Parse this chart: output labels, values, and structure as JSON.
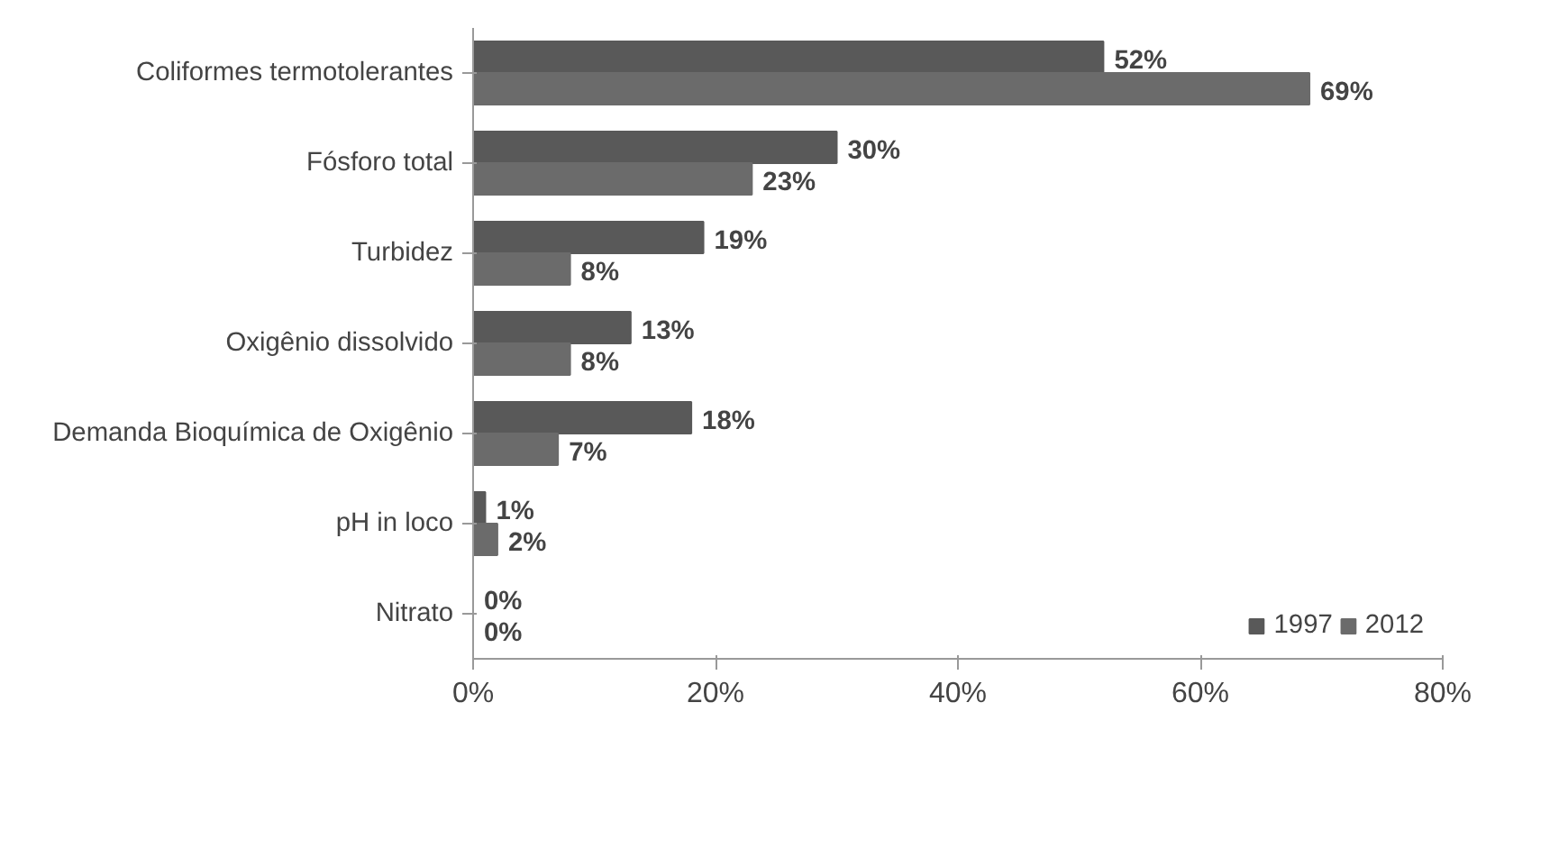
{
  "chart_data": {
    "type": "bar",
    "orientation": "horizontal",
    "categories": [
      "Coliformes termotolerantes",
      "Fósforo total",
      "Turbidez",
      "Oxigênio dissolvido",
      "Demanda Bioquímica de Oxigênio",
      "pH in loco",
      "Nitrato"
    ],
    "series": [
      {
        "name": "1997",
        "color": "#595959",
        "values": [
          52,
          30,
          19,
          13,
          18,
          1,
          0
        ],
        "value_labels": [
          "52%",
          "30%",
          "19%",
          "13%",
          "18%",
          "1%",
          "0%"
        ]
      },
      {
        "name": "2012",
        "color": "#6b6b6b",
        "values": [
          69,
          23,
          8,
          8,
          7,
          2,
          0
        ],
        "value_labels": [
          "69%",
          "23%",
          "8%",
          "8%",
          "7%",
          "2%",
          "0%"
        ]
      }
    ],
    "xlim": [
      0,
      80
    ],
    "xticks": [
      {
        "value": 0,
        "label": "0%"
      },
      {
        "value": 20,
        "label": "20%"
      },
      {
        "value": 40,
        "label": "40%"
      },
      {
        "value": 60,
        "label": "60%"
      },
      {
        "value": 80,
        "label": "80%"
      }
    ],
    "grid": false,
    "legend": "bottom right"
  }
}
